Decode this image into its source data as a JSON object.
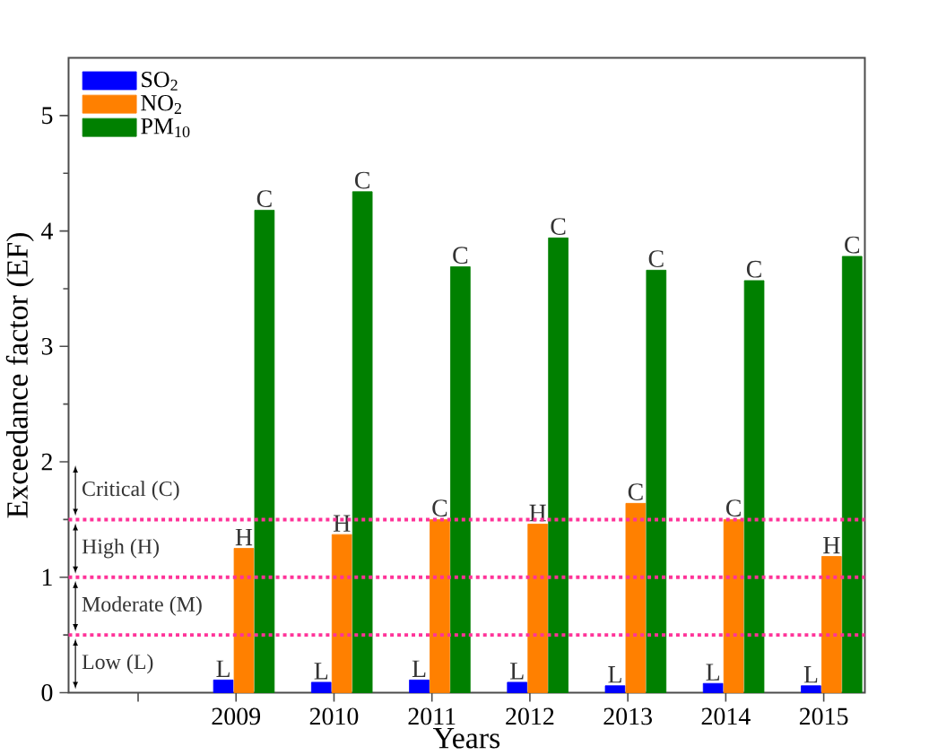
{
  "chart_data": {
    "type": "bar",
    "xlabel": "Years",
    "ylabel": "Exceedance factor (EF)",
    "categories": [
      null,
      "2009",
      "2010",
      "2011",
      "2012",
      "2013",
      "2014",
      "2015"
    ],
    "series": [
      {
        "name": "SO$_{2}$",
        "color": "#0000ff",
        "values": [
          null,
          0.11,
          0.09,
          0.11,
          0.09,
          0.06,
          0.08,
          0.06
        ],
        "value_labels": [
          null,
          "L",
          "L",
          "L",
          "L",
          "L",
          "L",
          "L"
        ]
      },
      {
        "name": "NO$_{2}$",
        "color": "#ff8000",
        "values": [
          null,
          1.25,
          1.37,
          1.5,
          1.46,
          1.64,
          1.5,
          1.18
        ],
        "value_labels": [
          null,
          "H",
          "H",
          "C",
          "H",
          "C",
          "C",
          "H"
        ]
      },
      {
        "name": "PM$_{10}$",
        "color": "#008000",
        "values": [
          null,
          4.18,
          4.34,
          3.69,
          3.94,
          3.66,
          3.57,
          3.78
        ],
        "value_labels": [
          null,
          "C",
          "C",
          "C",
          "C",
          "C",
          "C",
          "C"
        ]
      }
    ],
    "ylim": [
      0,
      5.5
    ],
    "yticks": [
      0,
      1,
      2,
      3,
      4,
      5
    ],
    "ref_lines": [
      {
        "axis": "y",
        "value": 0.5,
        "color": "#ff3399",
        "line_style": "dotted"
      },
      {
        "axis": "y",
        "value": 1.0,
        "color": "#ff3399",
        "line_style": "dotted"
      },
      {
        "axis": "y",
        "value": 1.5,
        "color": "#ff3399",
        "line_style": "dotted"
      }
    ],
    "annotations": [
      "Critical (C)",
      "High (H)",
      "Moderate (M)",
      "Low (L)"
    ],
    "legend": "top left",
    "grid": false
  }
}
